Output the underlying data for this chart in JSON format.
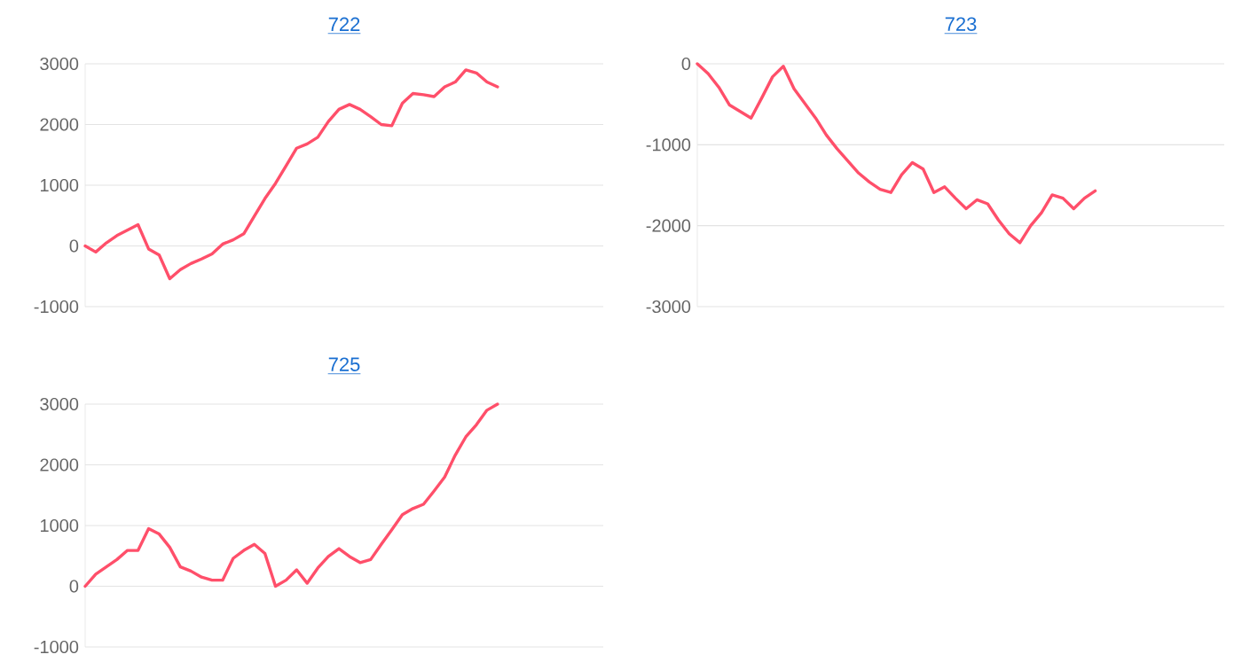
{
  "chart_data": [
    {
      "type": "line",
      "title": "722",
      "categories": [
        null,
        null,
        null,
        null,
        null,
        null,
        null,
        null,
        null,
        null,
        null,
        null,
        null,
        null,
        null,
        null,
        null,
        null,
        null,
        null,
        null,
        null,
        null,
        null,
        null,
        null,
        null,
        null,
        null,
        null,
        null,
        null,
        null,
        null,
        null,
        null,
        null,
        null,
        null,
        null,
        null,
        null,
        null,
        null,
        null,
        null,
        null,
        null,
        null,
        null
      ],
      "values": [
        0,
        -100,
        50,
        170,
        260,
        350,
        -50,
        -150,
        -540,
        -390,
        -290,
        -215,
        -130,
        30,
        100,
        200,
        490,
        780,
        1030,
        1320,
        1610,
        1680,
        1790,
        2050,
        2250,
        2330,
        2250,
        2130,
        2000,
        1980,
        2350,
        2510,
        2490,
        2460,
        2620,
        2700,
        2900,
        2850,
        2700,
        2620,
        null,
        null,
        null,
        null,
        null,
        null,
        null,
        null,
        null,
        null
      ],
      "color": "#ff4f6a",
      "ylim": [
        -1000,
        3000
      ],
      "yticks": [
        -1000,
        0,
        1000,
        2000,
        3000
      ],
      "grid": "y",
      "tick_labels": "y",
      "marker": "none",
      "line_style": "solid"
    },
    {
      "type": "line",
      "title": "723",
      "categories": [
        null,
        null,
        null,
        null,
        null,
        null,
        null,
        null,
        null,
        null,
        null,
        null,
        null,
        null,
        null,
        null,
        null,
        null,
        null,
        null,
        null,
        null,
        null,
        null,
        null,
        null,
        null,
        null,
        null,
        null,
        null,
        null,
        null,
        null,
        null,
        null,
        null,
        null,
        null,
        null,
        null,
        null,
        null,
        null,
        null,
        null,
        null,
        null,
        null,
        null
      ],
      "values": [
        0,
        -120,
        -290,
        -510,
        -590,
        -670,
        -420,
        -160,
        -30,
        -310,
        -490,
        -670,
        -880,
        -1050,
        -1200,
        -1350,
        -1460,
        -1550,
        -1590,
        -1370,
        -1220,
        -1300,
        -1590,
        -1520,
        -1660,
        -1790,
        -1680,
        -1730,
        -1930,
        -2100,
        -2210,
        -2000,
        -1840,
        -1620,
        -1660,
        -1790,
        -1660,
        -1570,
        null,
        null,
        null,
        null,
        null,
        null,
        null,
        null,
        null,
        null,
        null,
        null
      ],
      "color": "#ff4f6a",
      "ylim": [
        -3000,
        0
      ],
      "yticks": [
        -3000,
        -2000,
        -1000,
        0
      ],
      "grid": "y",
      "tick_labels": "y",
      "marker": "none",
      "line_style": "solid"
    },
    {
      "type": "line",
      "title": "725",
      "categories": [
        null,
        null,
        null,
        null,
        null,
        null,
        null,
        null,
        null,
        null,
        null,
        null,
        null,
        null,
        null,
        null,
        null,
        null,
        null,
        null,
        null,
        null,
        null,
        null,
        null,
        null,
        null,
        null,
        null,
        null,
        null,
        null,
        null,
        null,
        null,
        null,
        null,
        null,
        null,
        null,
        null,
        null,
        null,
        null,
        null,
        null,
        null,
        null,
        null,
        null
      ],
      "values": [
        0,
        200,
        320,
        440,
        590,
        590,
        950,
        860,
        640,
        320,
        250,
        150,
        100,
        100,
        460,
        590,
        690,
        540,
        0,
        100,
        270,
        50,
        300,
        490,
        620,
        490,
        390,
        440,
        690,
        930,
        1180,
        1280,
        1350,
        1570,
        1800,
        2160,
        2460,
        2660,
        2900,
        3000,
        null,
        null,
        null,
        null,
        null,
        null,
        null,
        null,
        null,
        null
      ],
      "color": "#ff4f6a",
      "ylim": [
        -1000,
        3000
      ],
      "yticks": [
        -1000,
        0,
        1000,
        2000,
        3000
      ],
      "grid": "y",
      "tick_labels": "y",
      "marker": "none",
      "line_style": "solid"
    }
  ]
}
